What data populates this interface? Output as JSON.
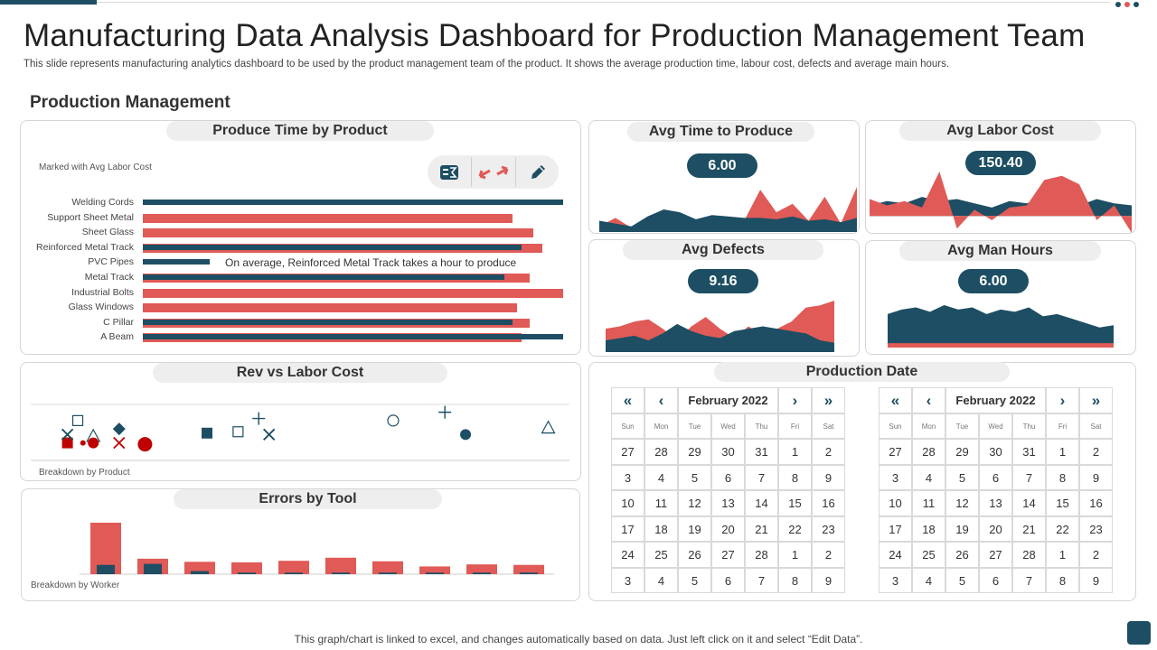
{
  "page": {
    "title": "Manufacturing Data Analysis Dashboard for Production Management Team",
    "subtitle": "This slide represents manufacturing analytics dashboard to be used by the product management team of the product.  It shows the average production time, labour cost, defects and average main hours.",
    "section": "Production Management",
    "footer": "This graph/chart is linked to excel,  and changes automatically based on data. Just left click on it and select “Edit Data”."
  },
  "colors": {
    "primary": "#1d4e63",
    "accent": "#e05a57",
    "pill": "#eeeeee"
  },
  "produce_time": {
    "title": "Produce Time by Product",
    "legend_note": "Marked  with Avg Labor Cost",
    "annotation": "On average, Reinforced Metal Track takes a hour to produce",
    "toolbar_icons": [
      "formula-icon",
      "swap-arrows-icon",
      "pencil-icon"
    ]
  },
  "kpis": {
    "avg_time": {
      "label": "Avg Time to Produce",
      "value": "6.00"
    },
    "avg_labor": {
      "label": "Avg Labor Cost",
      "value": "150.40"
    },
    "avg_defects": {
      "label": "Avg Defects",
      "value": "9.16"
    },
    "avg_man_hours": {
      "label": "Avg Man Hours",
      "value": "6.00"
    }
  },
  "rev_vs_labor": {
    "title": "Rev vs Labor Cost",
    "note": "Breakdown by Product"
  },
  "errors_by_tool": {
    "title": "Errors by Tool",
    "note": "Breakdown by Worker"
  },
  "production_date": {
    "title": "Production Date",
    "month": "February  2022",
    "nav": {
      "first": "«",
      "prev": "‹",
      "next": "›",
      "last": "»"
    },
    "weekdays": [
      "Sun",
      "Mon",
      "Tue",
      "Wed",
      "Thu",
      "Fri",
      "Sat"
    ],
    "weeks": [
      [
        "27",
        "28",
        "29",
        "30",
        "31",
        "1",
        "2"
      ],
      [
        "3",
        "4",
        "5",
        "6",
        "7",
        "8",
        "9"
      ],
      [
        "10",
        "11",
        "12",
        "13",
        "14",
        "15",
        "16"
      ],
      [
        "17",
        "18",
        "19",
        "20",
        "21",
        "22",
        "23"
      ],
      [
        "24",
        "25",
        "26",
        "27",
        "28",
        "1",
        "2"
      ],
      [
        "3",
        "4",
        "5",
        "6",
        "7",
        "8",
        "9"
      ]
    ]
  },
  "chart_data": [
    {
      "type": "bar",
      "orientation": "horizontal",
      "title": "Produce Time by Product",
      "categories": [
        "Welding Cords",
        "Support Sheet Metal",
        "Sheet Glass",
        "Reinforced Metal Track",
        "PVC Pipes",
        "Metal Track",
        "Industrial Bolts",
        "Glass Windows",
        "C Pillar",
        "A Beam"
      ],
      "series": [
        {
          "color": "#1d4e63",
          "values": [
            100,
            null,
            null,
            90,
            16,
            86,
            null,
            null,
            88,
            100
          ]
        },
        {
          "color": "#e05a57",
          "values": [
            null,
            88,
            93,
            95,
            null,
            92,
            100,
            89,
            92,
            90
          ]
        }
      ]
    },
    {
      "type": "scatter",
      "title": "Rev vs Labor Cost",
      "points": [
        {
          "x": 7,
          "y": 52,
          "marker": "square-open",
          "color": "#1d4e63"
        },
        {
          "x": 5,
          "y": 20,
          "marker": "square",
          "color": "#c00000"
        },
        {
          "x": 5,
          "y": 32,
          "marker": "x",
          "color": "#1d4e63"
        },
        {
          "x": 10,
          "y": 30,
          "marker": "triangle-open",
          "color": "#1d4e63"
        },
        {
          "x": 8,
          "y": 20,
          "marker": "circle-small",
          "color": "#c00000"
        },
        {
          "x": 10,
          "y": 20,
          "marker": "circle",
          "color": "#c00000"
        },
        {
          "x": 15,
          "y": 40,
          "marker": "diamond",
          "color": "#1d4e63"
        },
        {
          "x": 15,
          "y": 20,
          "marker": "x",
          "color": "#c00000"
        },
        {
          "x": 20,
          "y": 18,
          "marker": "circle-large",
          "color": "#c00000"
        },
        {
          "x": 32,
          "y": 34,
          "marker": "square",
          "color": "#1d4e63"
        },
        {
          "x": 38,
          "y": 36,
          "marker": "square-open",
          "color": "#1d4e63"
        },
        {
          "x": 42,
          "y": 55,
          "marker": "plus",
          "color": "#1d4e63"
        },
        {
          "x": 44,
          "y": 32,
          "marker": "x",
          "color": "#1d4e63"
        },
        {
          "x": 68,
          "y": 52,
          "marker": "circle-open",
          "color": "#1d4e63"
        },
        {
          "x": 78,
          "y": 64,
          "marker": "plus",
          "color": "#1d4e63"
        },
        {
          "x": 82,
          "y": 32,
          "marker": "circle",
          "color": "#1d4e63"
        },
        {
          "x": 98,
          "y": 42,
          "marker": "triangle-open",
          "color": "#1d4e63"
        }
      ]
    },
    {
      "type": "bar",
      "title": "Errors by Tool",
      "series": [
        {
          "color": "#e05a57",
          "values": [
            100,
            30,
            24,
            23,
            26,
            32,
            25,
            15,
            19,
            18
          ]
        },
        {
          "color": "#1d4e63",
          "values": [
            18,
            20,
            6,
            3,
            3,
            3,
            3,
            3,
            3,
            3
          ]
        }
      ]
    },
    {
      "type": "area",
      "title": "Avg Time to Produce",
      "series": [
        {
          "color": "#e05a57",
          "values": [
            4,
            10,
            3,
            5,
            8,
            9,
            7,
            10,
            9,
            8,
            30,
            14,
            20,
            8,
            25,
            6,
            32
          ]
        },
        {
          "color": "#1d4e63",
          "values": [
            8,
            6,
            4,
            11,
            16,
            14,
            9,
            12,
            11,
            10,
            10,
            9,
            11,
            8,
            9,
            7,
            10
          ]
        }
      ]
    },
    {
      "type": "area",
      "title": "Avg Labor Cost",
      "series": [
        {
          "color": "#1d4e63",
          "values": [
            10,
            14,
            12,
            18,
            14,
            16,
            12,
            8,
            14,
            12,
            18,
            14,
            10,
            16,
            12,
            10
          ]
        },
        {
          "color": "#e05a57",
          "values": [
            16,
            10,
            14,
            8,
            42,
            -12,
            6,
            -4,
            8,
            10,
            34,
            38,
            30,
            -4,
            10,
            -16
          ]
        }
      ]
    },
    {
      "type": "area",
      "title": "Avg Defects",
      "series": [
        {
          "color": "#e05a57",
          "values": [
            20,
            22,
            26,
            28,
            20,
            10,
            22,
            30,
            20,
            12,
            22,
            14,
            20,
            26,
            38,
            40,
            44
          ]
        },
        {
          "color": "#1d4e63",
          "values": [
            10,
            12,
            14,
            10,
            16,
            24,
            18,
            14,
            12,
            18,
            20,
            22,
            20,
            18,
            16,
            10,
            8
          ]
        }
      ]
    },
    {
      "type": "area",
      "title": "Avg Man Hours",
      "series": [
        {
          "color": "#1d4e63",
          "values": [
            30,
            34,
            36,
            32,
            38,
            34,
            36,
            30,
            34,
            32,
            36,
            28,
            30,
            26,
            22,
            18,
            20
          ]
        },
        {
          "color": "#e05a57",
          "values": [
            4,
            4,
            4,
            4,
            4,
            4,
            4,
            4,
            4,
            4,
            4,
            4,
            4,
            4,
            4,
            4,
            4
          ]
        }
      ]
    }
  ]
}
